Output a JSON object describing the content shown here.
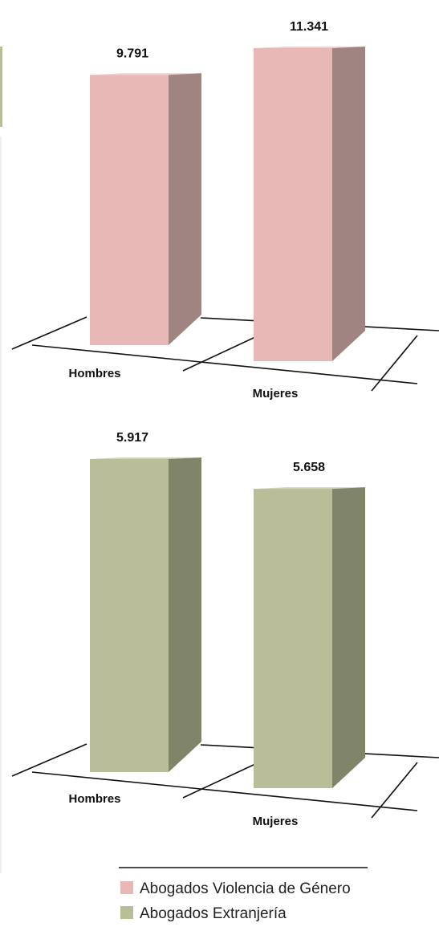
{
  "chart_data": [
    {
      "type": "bar",
      "categories": [
        "Hombres",
        "Mujeres"
      ],
      "series": [
        {
          "name": "Abogados Violencia de Género",
          "values": [
            9791,
            11341
          ],
          "value_labels": [
            "9.791",
            "11.341"
          ]
        }
      ],
      "colors": {
        "face": "#e8b8b6",
        "side": "#a08482",
        "top": "#f1cfcd"
      },
      "ylim": [
        0,
        11341
      ],
      "title": "",
      "xlabel": "",
      "ylabel": ""
    },
    {
      "type": "bar",
      "categories": [
        "Hombres",
        "Mujeres"
      ],
      "series": [
        {
          "name": "Abogados Extranjería",
          "values": [
            5917,
            5658
          ],
          "value_labels": [
            "5.917",
            "5.658"
          ]
        }
      ],
      "colors": {
        "face": "#b9be98",
        "side": "#80856a",
        "top": "#d0d4b4"
      },
      "ylim": [
        0,
        5917
      ],
      "title": "",
      "xlabel": "",
      "ylabel": ""
    }
  ],
  "legend": {
    "items": [
      {
        "label": "Abogados Violencia de Género",
        "color": "#e8b8b6"
      },
      {
        "label": "Abogados Extranjería",
        "color": "#b9be98"
      }
    ]
  },
  "colors": {
    "axis_line": "#111111",
    "left_accent": "#b9be98"
  }
}
